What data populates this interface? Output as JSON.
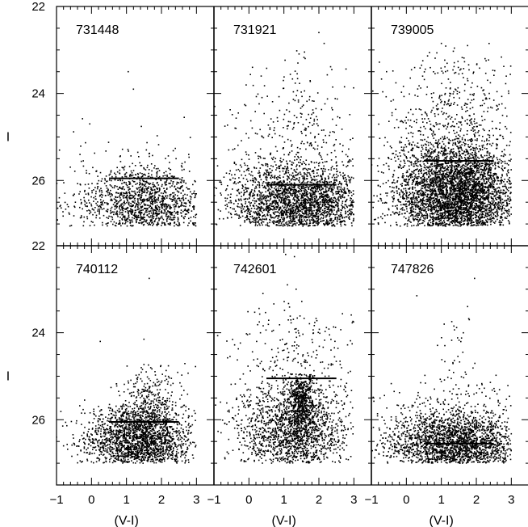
{
  "chart_data": {
    "type": "scatter",
    "layout": "2x3 grid of color-magnitude diagrams with shared axes",
    "xlabel": "(V-I)",
    "ylabel": "I",
    "xlim": [
      -1,
      3.5
    ],
    "ylim": [
      27.5,
      22
    ],
    "y_inverted": true,
    "x_ticks": [
      -1,
      0,
      1,
      2,
      3
    ],
    "y_ticks": [
      22,
      24,
      26
    ],
    "grid": false,
    "legend": "none",
    "point_color": "#000000",
    "panels": [
      {
        "id": "731448",
        "trgb_line": {
          "I": 25.95,
          "x_from": 0.5,
          "x_to": 2.5
        },
        "clumps": [
          {
            "n": 1300,
            "cx": 1.55,
            "cy": 26.55,
            "sx": 0.95,
            "sy": 0.42,
            "ymin": 24.7,
            "ymax": 27.05
          },
          {
            "n": 60,
            "cx": 1.0,
            "cy": 26.0,
            "sx": 1.4,
            "sy": 0.7,
            "ymin": 24.3,
            "ymax": 27.05
          }
        ],
        "extra_points": [
          [
            1.05,
            23.5
          ],
          [
            1.2,
            23.9
          ],
          [
            -0.05,
            24.7
          ],
          [
            2.65,
            24.55
          ]
        ]
      },
      {
        "id": "731921",
        "trgb_line": {
          "I": 26.1,
          "x_from": 0.5,
          "x_to": 2.5
        },
        "clumps": [
          {
            "n": 2200,
            "cx": 1.5,
            "cy": 26.55,
            "sx": 1.0,
            "sy": 0.45,
            "ymin": 24.9,
            "ymax": 27.05
          },
          {
            "n": 300,
            "cx": 1.25,
            "cy": 25.4,
            "sx": 1.3,
            "sy": 0.85,
            "ymin": 23.2,
            "ymax": 27.05
          },
          {
            "n": 70,
            "cx": 1.55,
            "cy": 24.6,
            "sx": 0.35,
            "sy": 0.75,
            "ymin": 23.0,
            "ymax": 26.0
          }
        ],
        "extra_points": [
          [
            2.0,
            22.6
          ],
          [
            2.15,
            22.85
          ],
          [
            1.4,
            23.3
          ],
          [
            0.1,
            23.4
          ],
          [
            0.35,
            23.6
          ]
        ]
      },
      {
        "id": "739005",
        "trgb_line": {
          "I": 25.55,
          "x_from": 0.5,
          "x_to": 2.5
        },
        "clumps": [
          {
            "n": 3800,
            "cx": 1.45,
            "cy": 26.35,
            "sx": 0.85,
            "sy": 0.6,
            "ymin": 24.6,
            "ymax": 27.05
          },
          {
            "n": 450,
            "cx": 1.35,
            "cy": 24.9,
            "sx": 1.2,
            "sy": 0.95,
            "ymin": 22.9,
            "ymax": 27.05
          },
          {
            "n": 90,
            "cx": 1.4,
            "cy": 24.0,
            "sx": 0.7,
            "sy": 0.7,
            "ymin": 22.8,
            "ymax": 25.5
          }
        ],
        "extra_points": [
          [
            2.1,
            22.05
          ],
          [
            1.0,
            22.85
          ],
          [
            1.75,
            22.9
          ],
          [
            2.25,
            23.2
          ]
        ]
      },
      {
        "id": "740112",
        "trgb_line": {
          "I": 26.05,
          "x_from": 0.5,
          "x_to": 2.5
        },
        "clumps": [
          {
            "n": 1900,
            "cx": 1.35,
            "cy": 26.5,
            "sx": 0.72,
            "sy": 0.4,
            "ymin": 25.6,
            "ymax": 27.0
          },
          {
            "n": 340,
            "cx": 1.75,
            "cy": 25.65,
            "sx": 0.45,
            "sy": 0.42,
            "ymin": 24.7,
            "ymax": 27.0
          },
          {
            "n": 60,
            "cx": 0.8,
            "cy": 26.3,
            "sx": 1.4,
            "sy": 0.55,
            "ymin": 25.3,
            "ymax": 27.0
          }
        ],
        "extra_points": [
          [
            1.65,
            22.75
          ],
          [
            1.5,
            24.15
          ],
          [
            0.25,
            24.2
          ],
          [
            -1.0,
            26.4
          ],
          [
            -0.8,
            26.6
          ]
        ]
      },
      {
        "id": "742601",
        "trgb_line": {
          "I": 25.05,
          "x_from": 0.5,
          "x_to": 2.5
        },
        "clumps": [
          {
            "n": 1500,
            "cx": 1.3,
            "cy": 26.3,
            "sx": 0.75,
            "sy": 0.55,
            "ymin": 25.0,
            "ymax": 27.0
          },
          {
            "n": 520,
            "cx": 1.5,
            "cy": 25.55,
            "sx": 0.18,
            "sy": 0.4,
            "ymin": 24.95,
            "ymax": 26.6
          },
          {
            "n": 260,
            "cx": 1.25,
            "cy": 25.3,
            "sx": 1.25,
            "sy": 0.95,
            "ymin": 23.4,
            "ymax": 27.0
          },
          {
            "n": 75,
            "cx": 1.5,
            "cy": 24.1,
            "sx": 0.75,
            "sy": 0.55,
            "ymin": 23.2,
            "ymax": 25.0
          }
        ],
        "extra_points": [
          [
            1.05,
            22.2
          ],
          [
            1.3,
            22.25
          ],
          [
            1.1,
            22.9
          ],
          [
            1.35,
            23.0
          ],
          [
            0.4,
            23.1
          ]
        ]
      },
      {
        "id": "747826",
        "trgb_line": {
          "I": 26.55,
          "x_from": 0.5,
          "x_to": 2.5
        },
        "clumps": [
          {
            "n": 2000,
            "cx": 1.4,
            "cy": 26.6,
            "sx": 0.95,
            "sy": 0.36,
            "ymin": 25.3,
            "ymax": 27.0
          },
          {
            "n": 260,
            "cx": 1.3,
            "cy": 25.9,
            "sx": 1.25,
            "sy": 0.55,
            "ymin": 24.8,
            "ymax": 27.0
          },
          {
            "n": 30,
            "cx": 1.5,
            "cy": 24.4,
            "sx": 0.3,
            "sy": 0.6,
            "ymin": 23.4,
            "ymax": 25.2
          }
        ],
        "extra_points": [
          [
            1.95,
            22.75
          ],
          [
            0.3,
            23.15
          ],
          [
            1.75,
            23.4
          ],
          [
            1.8,
            23.7
          ],
          [
            -0.35,
            25.35
          ]
        ]
      }
    ]
  }
}
